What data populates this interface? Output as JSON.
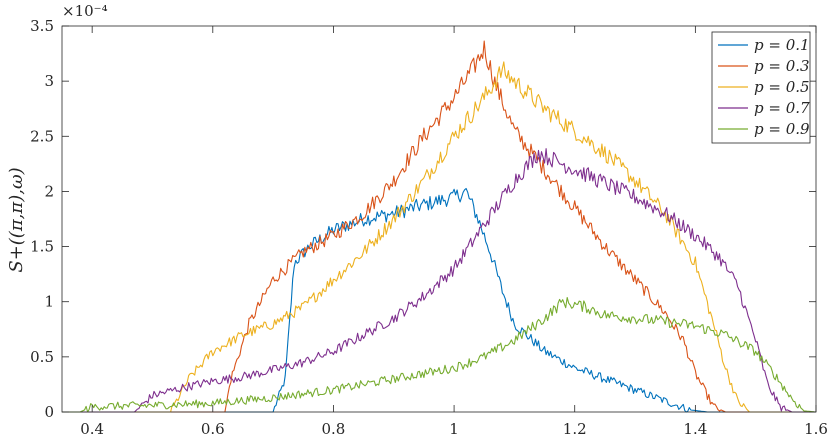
{
  "chart_data": {
    "type": "line",
    "title": "",
    "xlabel": "",
    "ylabel": "S+((π,π),ω)",
    "y_exponent_label": "×10⁻⁴",
    "xlim": [
      0.35,
      1.6
    ],
    "ylim": [
      0,
      3.5
    ],
    "xticks": [
      0.4,
      0.6,
      0.8,
      1,
      1.2,
      1.4,
      1.6
    ],
    "yticks": [
      0,
      0.5,
      1,
      1.5,
      2,
      2.5,
      3,
      3.5
    ],
    "grid": false,
    "legend_position": "top-right",
    "series": [
      {
        "name": "p = 0.1",
        "color": "#0072BD",
        "points": [
          [
            0.35,
            0
          ],
          [
            0.7,
            0
          ],
          [
            0.72,
            0.3
          ],
          [
            0.735,
            1.35
          ],
          [
            0.76,
            1.5
          ],
          [
            0.8,
            1.65
          ],
          [
            0.85,
            1.75
          ],
          [
            0.9,
            1.8
          ],
          [
            0.95,
            1.88
          ],
          [
            1.0,
            1.95
          ],
          [
            1.02,
            2.0
          ],
          [
            1.04,
            1.75
          ],
          [
            1.06,
            1.45
          ],
          [
            1.08,
            1.1
          ],
          [
            1.1,
            0.8
          ],
          [
            1.15,
            0.55
          ],
          [
            1.2,
            0.4
          ],
          [
            1.25,
            0.3
          ],
          [
            1.3,
            0.2
          ],
          [
            1.35,
            0.1
          ],
          [
            1.39,
            0.02
          ],
          [
            1.42,
            0
          ],
          [
            1.6,
            0
          ]
        ]
      },
      {
        "name": "p = 0.3",
        "color": "#D95319",
        "points": [
          [
            0.35,
            0
          ],
          [
            0.62,
            0
          ],
          [
            0.63,
            0.3
          ],
          [
            0.66,
            0.8
          ],
          [
            0.7,
            1.2
          ],
          [
            0.75,
            1.45
          ],
          [
            0.8,
            1.6
          ],
          [
            0.85,
            1.8
          ],
          [
            0.9,
            2.1
          ],
          [
            0.95,
            2.5
          ],
          [
            1.0,
            2.85
          ],
          [
            1.03,
            3.1
          ],
          [
            1.05,
            3.3
          ],
          [
            1.07,
            2.95
          ],
          [
            1.1,
            2.55
          ],
          [
            1.15,
            2.2
          ],
          [
            1.2,
            1.85
          ],
          [
            1.25,
            1.5
          ],
          [
            1.3,
            1.2
          ],
          [
            1.35,
            0.9
          ],
          [
            1.38,
            0.65
          ],
          [
            1.4,
            0.35
          ],
          [
            1.43,
            0.05
          ],
          [
            1.45,
            0
          ],
          [
            1.6,
            0
          ]
        ]
      },
      {
        "name": "p = 0.5",
        "color": "#EDB120",
        "points": [
          [
            0.35,
            0
          ],
          [
            0.53,
            0
          ],
          [
            0.56,
            0.3
          ],
          [
            0.6,
            0.55
          ],
          [
            0.65,
            0.7
          ],
          [
            0.7,
            0.8
          ],
          [
            0.75,
            0.95
          ],
          [
            0.8,
            1.2
          ],
          [
            0.85,
            1.45
          ],
          [
            0.9,
            1.75
          ],
          [
            0.95,
            2.1
          ],
          [
            1.0,
            2.5
          ],
          [
            1.05,
            2.85
          ],
          [
            1.08,
            3.1
          ],
          [
            1.12,
            2.9
          ],
          [
            1.15,
            2.75
          ],
          [
            1.2,
            2.55
          ],
          [
            1.25,
            2.35
          ],
          [
            1.3,
            2.1
          ],
          [
            1.35,
            1.8
          ],
          [
            1.4,
            1.35
          ],
          [
            1.43,
            0.8
          ],
          [
            1.45,
            0.4
          ],
          [
            1.47,
            0.1
          ],
          [
            1.49,
            0
          ],
          [
            1.6,
            0
          ]
        ]
      },
      {
        "name": "p = 0.7",
        "color": "#7E2F8E",
        "points": [
          [
            0.35,
            0
          ],
          [
            0.47,
            0
          ],
          [
            0.5,
            0.15
          ],
          [
            0.55,
            0.22
          ],
          [
            0.6,
            0.28
          ],
          [
            0.65,
            0.32
          ],
          [
            0.7,
            0.38
          ],
          [
            0.75,
            0.45
          ],
          [
            0.8,
            0.55
          ],
          [
            0.85,
            0.7
          ],
          [
            0.9,
            0.85
          ],
          [
            0.95,
            1.05
          ],
          [
            1.0,
            1.3
          ],
          [
            1.05,
            1.7
          ],
          [
            1.1,
            2.1
          ],
          [
            1.14,
            2.35
          ],
          [
            1.18,
            2.25
          ],
          [
            1.22,
            2.15
          ],
          [
            1.26,
            2.05
          ],
          [
            1.3,
            1.95
          ],
          [
            1.35,
            1.8
          ],
          [
            1.4,
            1.6
          ],
          [
            1.44,
            1.4
          ],
          [
            1.47,
            1.15
          ],
          [
            1.5,
            0.65
          ],
          [
            1.52,
            0.25
          ],
          [
            1.54,
            0.05
          ],
          [
            1.56,
            0
          ],
          [
            1.6,
            0
          ]
        ]
      },
      {
        "name": "p = 0.9",
        "color": "#77AC30",
        "points": [
          [
            0.35,
            0
          ],
          [
            0.38,
            0
          ],
          [
            0.4,
            0.05
          ],
          [
            0.5,
            0.06
          ],
          [
            0.6,
            0.08
          ],
          [
            0.7,
            0.13
          ],
          [
            0.8,
            0.2
          ],
          [
            0.9,
            0.3
          ],
          [
            1.0,
            0.4
          ],
          [
            1.05,
            0.5
          ],
          [
            1.1,
            0.65
          ],
          [
            1.15,
            0.85
          ],
          [
            1.18,
            1.0
          ],
          [
            1.22,
            0.95
          ],
          [
            1.25,
            0.88
          ],
          [
            1.3,
            0.85
          ],
          [
            1.35,
            0.82
          ],
          [
            1.4,
            0.78
          ],
          [
            1.45,
            0.7
          ],
          [
            1.5,
            0.55
          ],
          [
            1.53,
            0.35
          ],
          [
            1.56,
            0.12
          ],
          [
            1.58,
            0.01
          ],
          [
            1.6,
            0
          ]
        ]
      }
    ]
  }
}
